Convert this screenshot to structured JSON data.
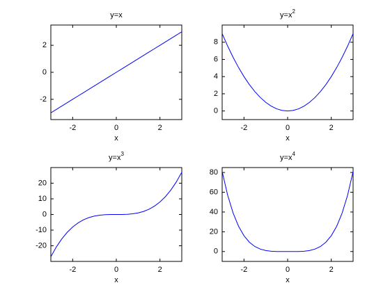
{
  "chart_data": [
    {
      "type": "line",
      "title": "y=x",
      "xlabel": "x",
      "x": [
        -3,
        -2.75,
        -2.5,
        -2.25,
        -2,
        -1.75,
        -1.5,
        -1.25,
        -1,
        -0.75,
        -0.5,
        -0.25,
        0,
        0.25,
        0.5,
        0.75,
        1,
        1.25,
        1.5,
        1.75,
        2,
        2.25,
        2.5,
        2.75,
        3
      ],
      "series": [
        {
          "color": "#0000ff",
          "values": [
            -3,
            -2.75,
            -2.5,
            -2.25,
            -2,
            -1.75,
            -1.5,
            -1.25,
            -1,
            -0.75,
            -0.5,
            -0.25,
            0,
            0.25,
            0.5,
            0.75,
            1,
            1.25,
            1.5,
            1.75,
            2,
            2.25,
            2.5,
            2.75,
            3
          ]
        }
      ],
      "xlim": [
        -3,
        3
      ],
      "xticks": [
        -2,
        0,
        2
      ],
      "ylim": [
        -3.5,
        3.5
      ],
      "yticks": [
        -2,
        0,
        2
      ]
    },
    {
      "type": "line",
      "title": "y=x",
      "title_exponent": "2",
      "xlabel": "x",
      "x": [
        -3,
        -2.75,
        -2.5,
        -2.25,
        -2,
        -1.75,
        -1.5,
        -1.25,
        -1,
        -0.75,
        -0.5,
        -0.25,
        0,
        0.25,
        0.5,
        0.75,
        1,
        1.25,
        1.5,
        1.75,
        2,
        2.25,
        2.5,
        2.75,
        3
      ],
      "series": [
        {
          "color": "#0000ff",
          "values": [
            9,
            7.5625,
            6.25,
            5.0625,
            4,
            3.0625,
            2.25,
            1.5625,
            1,
            0.5625,
            0.25,
            0.0625,
            0,
            0.0625,
            0.25,
            0.5625,
            1,
            1.5625,
            2.25,
            3.0625,
            4,
            5.0625,
            6.25,
            7.5625,
            9
          ]
        }
      ],
      "xlim": [
        -3,
        3
      ],
      "xticks": [
        -2,
        0,
        2
      ],
      "ylim": [
        -1,
        10
      ],
      "yticks": [
        0,
        2,
        4,
        6,
        8
      ]
    },
    {
      "type": "line",
      "title": "y=x",
      "title_exponent": "3",
      "xlabel": "x",
      "x": [
        -3,
        -2.75,
        -2.5,
        -2.25,
        -2,
        -1.75,
        -1.5,
        -1.25,
        -1,
        -0.75,
        -0.5,
        -0.25,
        0,
        0.25,
        0.5,
        0.75,
        1,
        1.25,
        1.5,
        1.75,
        2,
        2.25,
        2.5,
        2.75,
        3
      ],
      "series": [
        {
          "color": "#0000ff",
          "values": [
            -27,
            -20.797,
            -15.625,
            -11.391,
            -8,
            -5.359,
            -3.375,
            -1.953,
            -1,
            -0.422,
            -0.125,
            -0.016,
            0,
            0.016,
            0.125,
            0.422,
            1,
            1.953,
            3.375,
            5.359,
            8,
            11.391,
            15.625,
            20.797,
            27
          ]
        }
      ],
      "xlim": [
        -3,
        3
      ],
      "xticks": [
        -2,
        0,
        2
      ],
      "ylim": [
        -30,
        30
      ],
      "yticks": [
        -20,
        -10,
        0,
        10,
        20
      ]
    },
    {
      "type": "line",
      "title": "y=x",
      "title_exponent": "4",
      "xlabel": "x",
      "x": [
        -3,
        -2.75,
        -2.5,
        -2.25,
        -2,
        -1.75,
        -1.5,
        -1.25,
        -1,
        -0.75,
        -0.5,
        -0.25,
        0,
        0.25,
        0.5,
        0.75,
        1,
        1.25,
        1.5,
        1.75,
        2,
        2.25,
        2.5,
        2.75,
        3
      ],
      "series": [
        {
          "color": "#0000ff",
          "values": [
            81,
            57.191,
            39.063,
            25.629,
            16,
            9.379,
            5.063,
            2.441,
            1,
            0.316,
            0.063,
            0.004,
            0,
            0.004,
            0.063,
            0.316,
            1,
            2.441,
            5.063,
            9.379,
            16,
            25.629,
            39.063,
            57.191,
            81
          ]
        }
      ],
      "xlim": [
        -3,
        3
      ],
      "xticks": [
        -2,
        0,
        2
      ],
      "ylim": [
        -10,
        85
      ],
      "yticks": [
        0,
        20,
        40,
        60,
        80
      ]
    }
  ]
}
